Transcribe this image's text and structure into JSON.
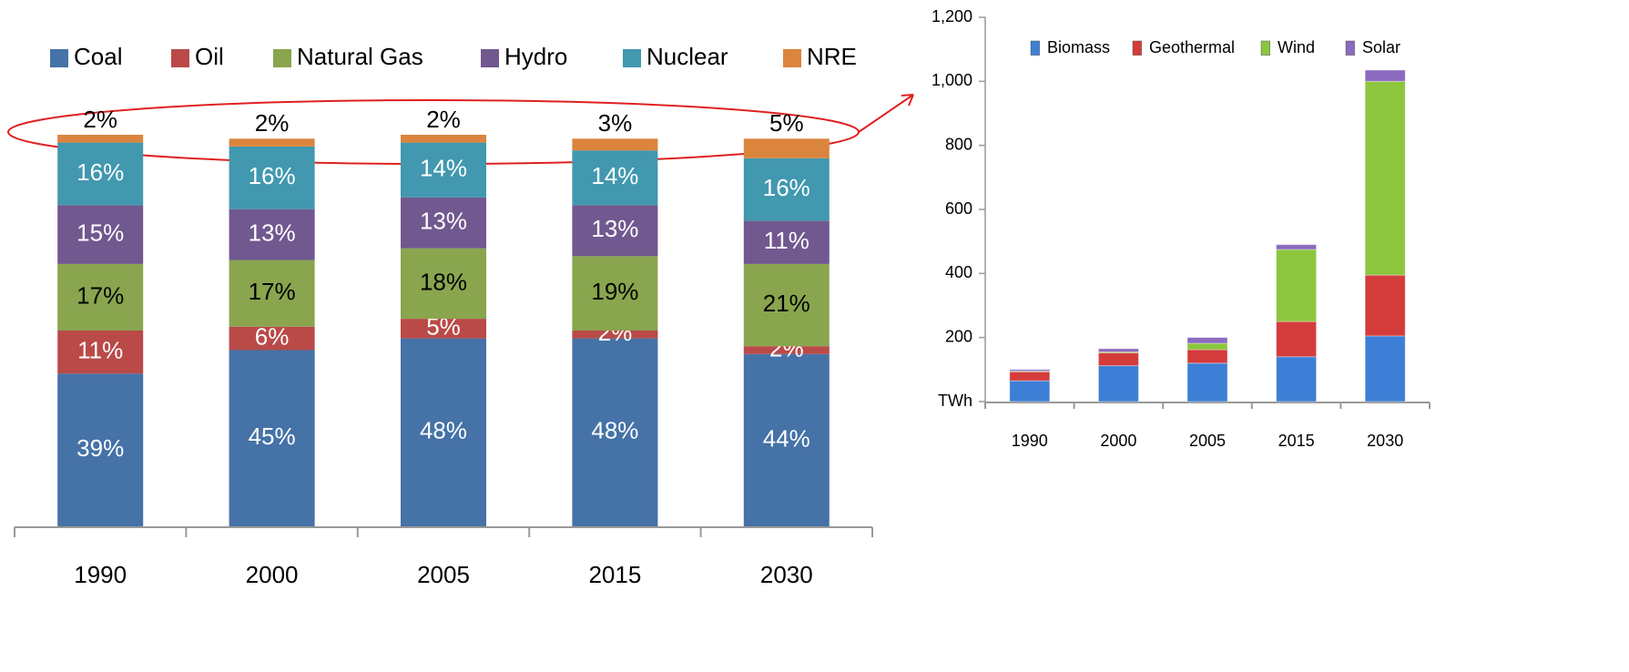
{
  "chart_data": [
    {
      "type": "bar",
      "stacked": true,
      "legend": "top",
      "categories": [
        "1990",
        "2000",
        "2005",
        "2015",
        "2030"
      ],
      "series": [
        {
          "name": "Coal",
          "color": "#4572a7",
          "values": [
            39,
            45,
            48,
            48,
            44
          ],
          "value_labels": [
            "39%",
            "45%",
            "48%",
            "48%",
            "44%"
          ]
        },
        {
          "name": "Oil",
          "color": "#b94a48",
          "values": [
            11,
            6,
            5,
            2,
            2
          ],
          "value_labels": [
            "11%",
            "6%",
            "5%",
            "2%",
            "2%"
          ]
        },
        {
          "name": "Natural Gas",
          "color": "#89a54e",
          "values": [
            17,
            17,
            18,
            19,
            21
          ],
          "value_labels": [
            "17%",
            "17%",
            "18%",
            "19%",
            "21%"
          ]
        },
        {
          "name": "Hydro",
          "color": "#71588f",
          "values": [
            15,
            13,
            13,
            13,
            11
          ],
          "value_labels": [
            "15%",
            "13%",
            "13%",
            "13%",
            "11%"
          ]
        },
        {
          "name": "Nuclear",
          "color": "#4198af",
          "values": [
            16,
            16,
            14,
            14,
            16
          ],
          "value_labels": [
            "16%",
            "16%",
            "14%",
            "14%",
            "16%"
          ]
        },
        {
          "name": "NRE",
          "color": "#db843d",
          "values": [
            2,
            2,
            2,
            3,
            5
          ],
          "value_labels": [
            "2%",
            "2%",
            "2%",
            "3%",
            "5%"
          ]
        }
      ]
    },
    {
      "type": "bar",
      "stacked": true,
      "legend": "top",
      "categories": [
        "1990",
        "2000",
        "2005",
        "2015",
        "2030"
      ],
      "ylim": [
        0,
        1200
      ],
      "yticks": [
        {
          "value": 0,
          "label": "TWh"
        },
        200,
        400,
        600,
        800,
        {
          "value": 1000,
          "label": "1,000"
        },
        {
          "value": 1200,
          "label": "1,200"
        }
      ],
      "series": [
        {
          "name": "Biomass",
          "color": "#3d7fd6",
          "values": [
            65,
            112,
            120,
            140,
            205
          ]
        },
        {
          "name": "Geothermal",
          "color": "#d43c3c",
          "values": [
            28,
            40,
            42,
            110,
            190
          ]
        },
        {
          "name": "Wind",
          "color": "#8cc63f",
          "values": [
            2,
            3,
            20,
            225,
            605
          ]
        },
        {
          "name": "Solar",
          "color": "#8a6bbf",
          "values": [
            5,
            10,
            18,
            15,
            35
          ]
        }
      ]
    }
  ]
}
